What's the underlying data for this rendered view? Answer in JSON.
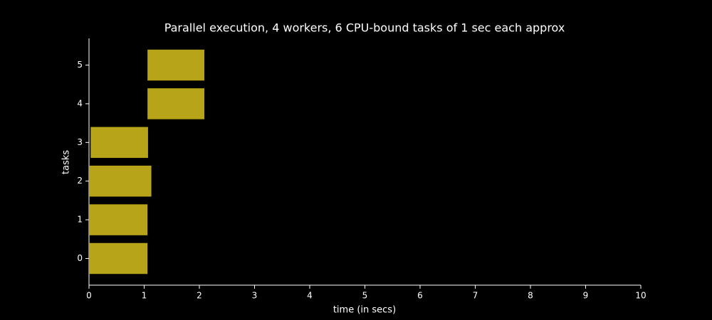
{
  "chart_data": {
    "type": "gantt",
    "title": "Parallel execution, 4 workers, 6 CPU-bound tasks of 1 sec each approx",
    "x_label": "time (in secs)",
    "y_label": "tasks",
    "categories": [
      "0",
      "1",
      "2",
      "3",
      "4",
      "5"
    ],
    "start": [
      0,
      0,
      0,
      0.03,
      1.06,
      1.06
    ],
    "end": [
      1.06,
      1.06,
      1.13,
      1.07,
      2.09,
      2.09
    ],
    "color": "#b8a418",
    "xlim": [
      0,
      10
    ],
    "xticks": [
      0,
      1,
      2,
      3,
      4,
      5,
      6,
      7,
      8,
      9,
      10
    ]
  }
}
